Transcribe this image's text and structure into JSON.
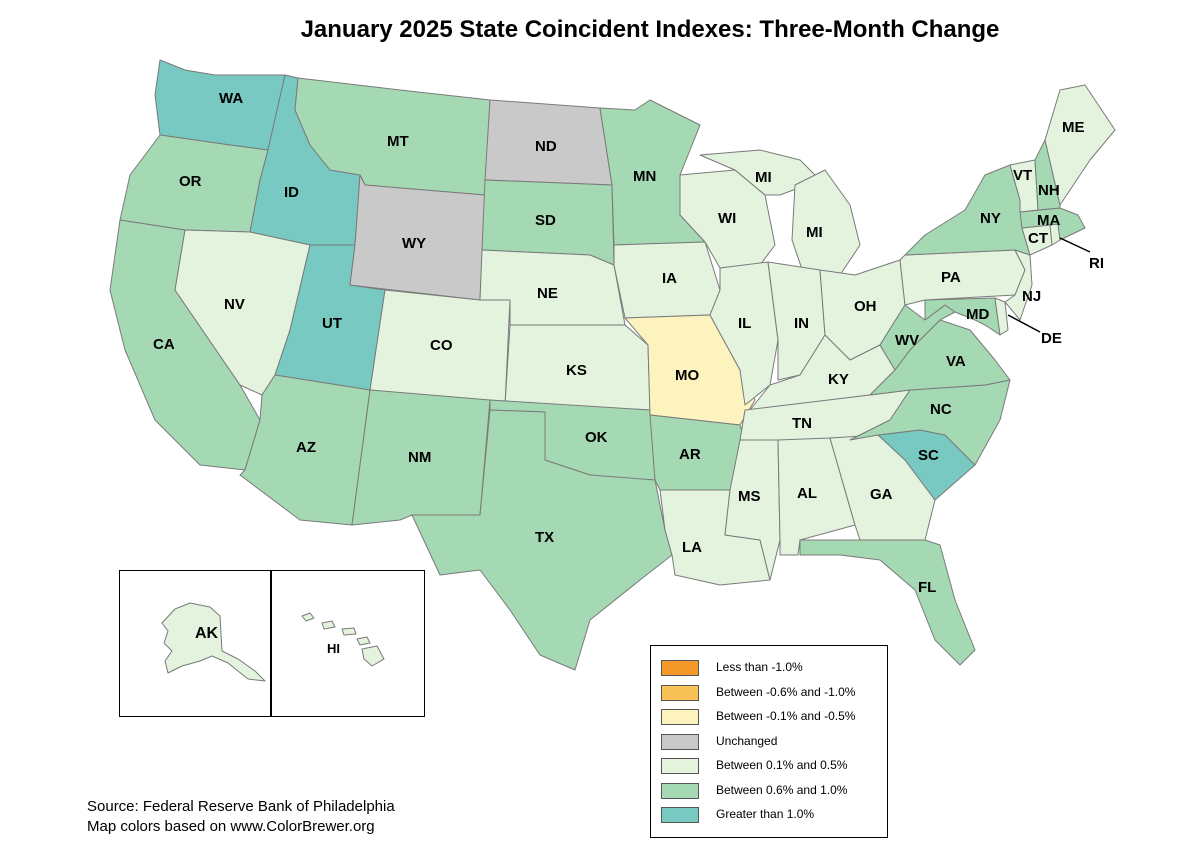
{
  "title": "January 2025 State Coincident Indexes: Three-Month Change",
  "colors": {
    "lt_neg1": "#f39a2b",
    "neg06_neg1": "#f9c256",
    "neg01_neg05": "#fdf3bf",
    "unchanged": "#c9c9c9",
    "p01_05": "#e3f3de",
    "p06_10": "#a5d9b3",
    "gt1": "#78c9c1"
  },
  "legend": [
    {
      "label": "Less than -1.0%",
      "color_key": "lt_neg1"
    },
    {
      "label": "Between -0.6% and -1.0%",
      "color_key": "neg06_neg1"
    },
    {
      "label": "Between -0.1% and -0.5%",
      "color_key": "neg01_neg05"
    },
    {
      "label": "Unchanged",
      "color_key": "unchanged"
    },
    {
      "label": "Between 0.1% and 0.5%",
      "color_key": "p01_05"
    },
    {
      "label": "Between 0.6% and 1.0%",
      "color_key": "p06_10"
    },
    {
      "label": "Greater than 1.0%",
      "color_key": "gt1"
    }
  ],
  "states": {
    "WA": "gt1",
    "OR": "p06_10",
    "CA": "p06_10",
    "ID": "gt1",
    "NV": "p01_05",
    "UT": "gt1",
    "AZ": "p06_10",
    "MT": "p06_10",
    "WY": "unchanged",
    "CO": "p01_05",
    "NM": "p06_10",
    "ND": "unchanged",
    "SD": "p06_10",
    "NE": "p01_05",
    "KS": "p01_05",
    "OK": "p06_10",
    "TX": "p06_10",
    "MN": "p06_10",
    "IA": "p01_05",
    "MO": "neg01_neg05",
    "AR": "p06_10",
    "LA": "p01_05",
    "WI": "p01_05",
    "IL": "p01_05",
    "MI": "p01_05",
    "IN": "p01_05",
    "OH": "p01_05",
    "KY": "p01_05",
    "TN": "p01_05",
    "MS": "p01_05",
    "AL": "p01_05",
    "GA": "p01_05",
    "FL": "p06_10",
    "SC": "gt1",
    "NC": "p06_10",
    "VA": "p06_10",
    "WV": "p06_10",
    "MD": "p06_10",
    "DE": "p01_05",
    "PA": "p01_05",
    "NJ": "p01_05",
    "NY": "p06_10",
    "CT": "p01_05",
    "RI": "p01_05",
    "MA": "p06_10",
    "VT": "p01_05",
    "NH": "p06_10",
    "ME": "p01_05",
    "AK": "p01_05",
    "HI": "p01_05"
  },
  "state_labels": [
    "WA",
    "OR",
    "CA",
    "ID",
    "NV",
    "UT",
    "AZ",
    "MT",
    "WY",
    "CO",
    "NM",
    "ND",
    "SD",
    "NE",
    "KS",
    "OK",
    "TX",
    "MN",
    "IA",
    "MO",
    "AR",
    "LA",
    "WI",
    "MI",
    "MI",
    "IL",
    "IN",
    "OH",
    "KY",
    "TN",
    "MS",
    "AL",
    "GA",
    "FL",
    "SC",
    "NC",
    "VA",
    "WV",
    "MD",
    "DE",
    "PA",
    "NJ",
    "NY",
    "CT",
    "RI",
    "MA",
    "VT",
    "NH",
    "ME",
    "AK",
    "HI"
  ],
  "source_line1": "Source: Federal Reserve Bank of Philadelphia",
  "source_line2": "Map colors based on www.ColorBrewer.org"
}
